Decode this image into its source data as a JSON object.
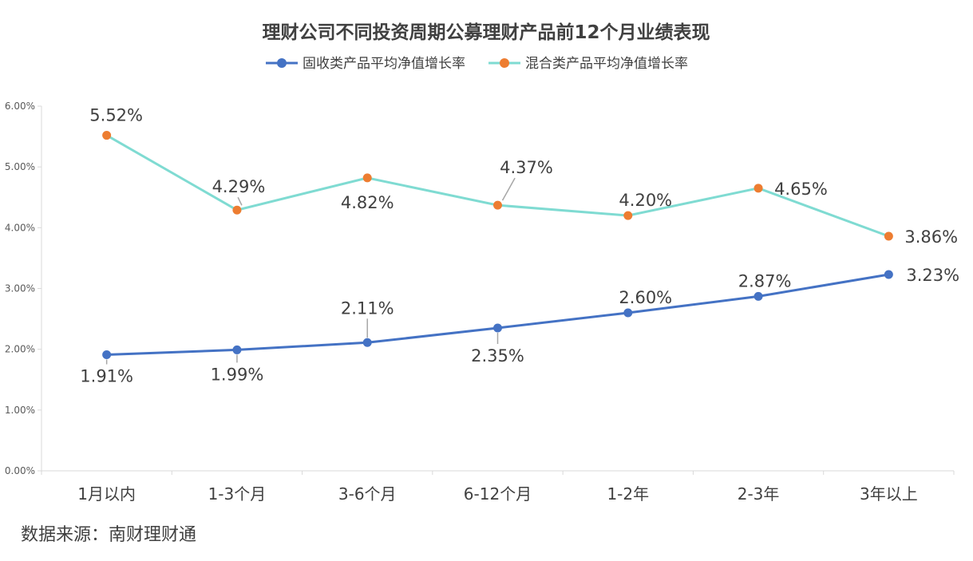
{
  "chart_data": {
    "type": "line",
    "title": "理财公司不同投资周期公募理财产品前12个月业绩表现",
    "categories": [
      "1月以内",
      "1-3个月",
      "3-6个月",
      "6-12个月",
      "1-2年",
      "2-3年",
      "3年以上"
    ],
    "series": [
      {
        "name": "固收类产品平均净值增长率",
        "color": "#4472C4",
        "values": [
          1.91,
          1.99,
          2.11,
          2.35,
          2.6,
          2.87,
          3.23
        ],
        "labels": [
          "1.91%",
          "1.99%",
          "2.11%",
          "2.35%",
          "2.60%",
          "2.87%",
          "3.23%"
        ]
      },
      {
        "name": "混合类产品平均净值增长率",
        "color": "#7FDBD2",
        "marker_color": "#ED7D31",
        "values": [
          5.52,
          4.29,
          4.82,
          4.37,
          4.2,
          4.65,
          3.86
        ],
        "labels": [
          "5.52%",
          "4.29%",
          "4.82%",
          "4.37%",
          "4.20%",
          "4.65%",
          "3.86%"
        ]
      }
    ],
    "ylim": [
      0,
      6
    ],
    "yticks": [
      "0.00%",
      "1.00%",
      "2.00%",
      "3.00%",
      "4.00%",
      "5.00%",
      "6.00%"
    ],
    "legend": "top",
    "grid": false
  },
  "source": "数据来源：南财理财通"
}
